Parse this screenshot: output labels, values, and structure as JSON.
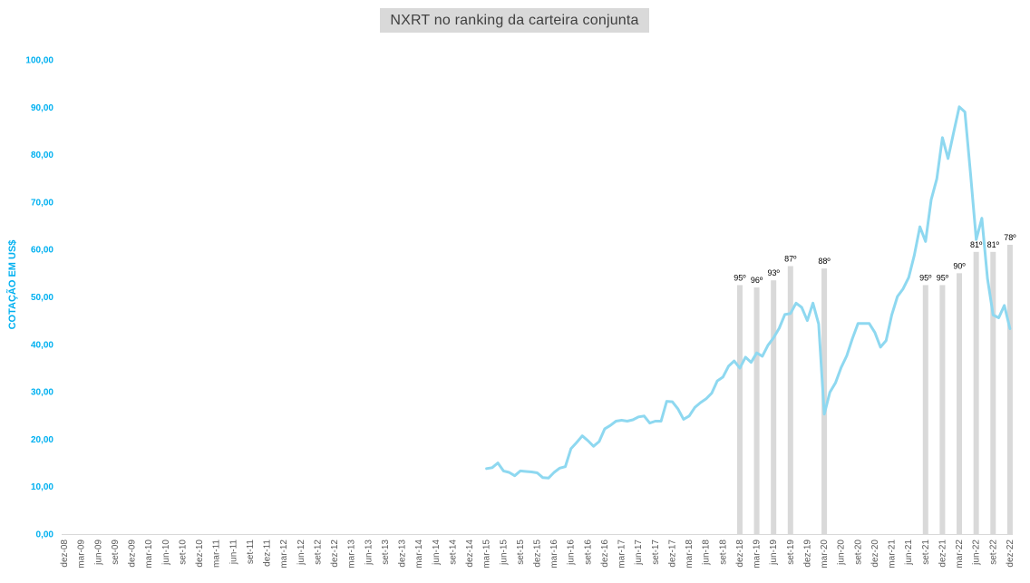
{
  "title": "NXRT no ranking da carteira conjunta",
  "colors": {
    "line": "#8ed8f0",
    "bar": "#d9d9d9",
    "axis_text": "#00b0f0"
  },
  "chart_data": {
    "type": "line",
    "ylabel": "COTAÇÃO EM US$",
    "ylim": [
      0,
      100
    ],
    "yticks": [
      "0,00",
      "10,00",
      "20,00",
      "30,00",
      "40,00",
      "50,00",
      "60,00",
      "70,00",
      "80,00",
      "90,00",
      "100,00"
    ],
    "x_months": [
      "2008-12",
      "2009-01",
      "2009-02",
      "2009-03",
      "2009-04",
      "2009-05",
      "2009-06",
      "2009-07",
      "2009-08",
      "2009-09",
      "2009-10",
      "2009-11",
      "2009-12",
      "2010-01",
      "2010-02",
      "2010-03",
      "2010-04",
      "2010-05",
      "2010-06",
      "2010-07",
      "2010-08",
      "2010-09",
      "2010-10",
      "2010-11",
      "2010-12",
      "2011-01",
      "2011-02",
      "2011-03",
      "2011-04",
      "2011-05",
      "2011-06",
      "2011-07",
      "2011-08",
      "2011-09",
      "2011-10",
      "2011-11",
      "2011-12",
      "2012-01",
      "2012-02",
      "2012-03",
      "2012-04",
      "2012-05",
      "2012-06",
      "2012-07",
      "2012-08",
      "2012-09",
      "2012-10",
      "2012-11",
      "2012-12",
      "2013-01",
      "2013-02",
      "2013-03",
      "2013-04",
      "2013-05",
      "2013-06",
      "2013-07",
      "2013-08",
      "2013-09",
      "2013-10",
      "2013-11",
      "2013-12",
      "2014-01",
      "2014-02",
      "2014-03",
      "2014-04",
      "2014-05",
      "2014-06",
      "2014-07",
      "2014-08",
      "2014-09",
      "2014-10",
      "2014-11",
      "2014-12",
      "2015-01",
      "2015-02",
      "2015-03",
      "2015-04",
      "2015-05",
      "2015-06",
      "2015-07",
      "2015-08",
      "2015-09",
      "2015-10",
      "2015-11",
      "2015-12",
      "2016-01",
      "2016-02",
      "2016-03",
      "2016-04",
      "2016-05",
      "2016-06",
      "2016-07",
      "2016-08",
      "2016-09",
      "2016-10",
      "2016-11",
      "2016-12",
      "2017-01",
      "2017-02",
      "2017-03",
      "2017-04",
      "2017-05",
      "2017-06",
      "2017-07",
      "2017-08",
      "2017-09",
      "2017-10",
      "2017-11",
      "2017-12",
      "2018-01",
      "2018-02",
      "2018-03",
      "2018-04",
      "2018-05",
      "2018-06",
      "2018-07",
      "2018-08",
      "2018-09",
      "2018-10",
      "2018-11",
      "2018-12",
      "2019-01",
      "2019-02",
      "2019-03",
      "2019-04",
      "2019-05",
      "2019-06",
      "2019-07",
      "2019-08",
      "2019-09",
      "2019-10",
      "2019-11",
      "2019-12",
      "2020-01",
      "2020-02",
      "2020-03",
      "2020-04",
      "2020-05",
      "2020-06",
      "2020-07",
      "2020-08",
      "2020-09",
      "2020-10",
      "2020-11",
      "2020-12",
      "2021-01",
      "2021-02",
      "2021-03",
      "2021-04",
      "2021-05",
      "2021-06",
      "2021-07",
      "2021-08",
      "2021-09",
      "2021-10",
      "2021-11",
      "2021-12",
      "2022-01",
      "2022-02",
      "2022-03",
      "2022-04",
      "2022-05",
      "2022-06",
      "2022-07",
      "2022-08",
      "2022-09",
      "2022-10",
      "2022-11",
      "2022-12"
    ],
    "xtick_labels": [
      "dez-08",
      "mar-09",
      "jun-09",
      "set-09",
      "dez-09",
      "mar-10",
      "jun-10",
      "set-10",
      "dez-10",
      "mar-11",
      "jun-11",
      "set-11",
      "dez-11",
      "mar-12",
      "jun-12",
      "set-12",
      "dez-12",
      "mar-13",
      "jun-13",
      "set-13",
      "dez-13",
      "mar-14",
      "jun-14",
      "set-14",
      "dez-14",
      "mar-15",
      "jun-15",
      "set-15",
      "dez-15",
      "mar-16",
      "jun-16",
      "set-16",
      "dez-16",
      "mar-17",
      "jun-17",
      "set-17",
      "dez-17",
      "mar-18",
      "jun-18",
      "set-18",
      "dez-18",
      "mar-19",
      "jun-19",
      "set-19",
      "dez-19",
      "mar-20",
      "jun-20",
      "set-20",
      "dez-20",
      "mar-21",
      "jun-21",
      "set-21",
      "dez-21",
      "mar-22",
      "jun-22",
      "set-22",
      "dez-22"
    ],
    "series": [
      {
        "start_month": "2015-03",
        "values": [
          13.8,
          14.0,
          15.0,
          13.3,
          13.0,
          12.3,
          13.3,
          13.2,
          13.1,
          12.9,
          11.9,
          11.8,
          13.0,
          13.9,
          14.2,
          18.0,
          19.3,
          20.7,
          19.7,
          18.5,
          19.5,
          22.2,
          22.9,
          23.8,
          24.0,
          23.8,
          24.1,
          24.7,
          24.9,
          23.4,
          23.8,
          23.8,
          28.0,
          27.9,
          26.4,
          24.2,
          24.9,
          26.7,
          27.7,
          28.5,
          29.7,
          32.3,
          33.1,
          35.4,
          36.5,
          35.0,
          37.3,
          36.2,
          38.2,
          37.5,
          39.8,
          41.4,
          43.4,
          46.3,
          46.5,
          48.7,
          47.8,
          45.0,
          48.7,
          44.3,
          25.3,
          29.9,
          31.9,
          35.1,
          37.6,
          41.2,
          44.4,
          44.4,
          44.4,
          42.5,
          39.4,
          40.8,
          46.2,
          50.1,
          51.7,
          54.1,
          58.8,
          64.8,
          61.7,
          70.5,
          74.9,
          83.6,
          79.2,
          84.7,
          90.1,
          89.0,
          76.0,
          62.1,
          66.6,
          53.9,
          46.2,
          45.6,
          48.2,
          43.3
        ]
      }
    ],
    "bars": [
      {
        "month": "2018-12",
        "value": 52.5,
        "label": "95º"
      },
      {
        "month": "2019-03",
        "value": 52.0,
        "label": "96º"
      },
      {
        "month": "2019-06",
        "value": 53.5,
        "label": "93º"
      },
      {
        "month": "2019-09",
        "value": 56.5,
        "label": "87º"
      },
      {
        "month": "2020-03",
        "value": 56.0,
        "label": "88º"
      },
      {
        "month": "2021-09",
        "value": 52.5,
        "label": "95º"
      },
      {
        "month": "2021-12",
        "value": 52.5,
        "label": "95º"
      },
      {
        "month": "2022-03",
        "value": 55.0,
        "label": "90º"
      },
      {
        "month": "2022-06",
        "value": 59.5,
        "label": "81º"
      },
      {
        "month": "2022-09",
        "value": 59.5,
        "label": "81º"
      },
      {
        "month": "2022-12",
        "value": 61.0,
        "label": "78º"
      }
    ]
  }
}
